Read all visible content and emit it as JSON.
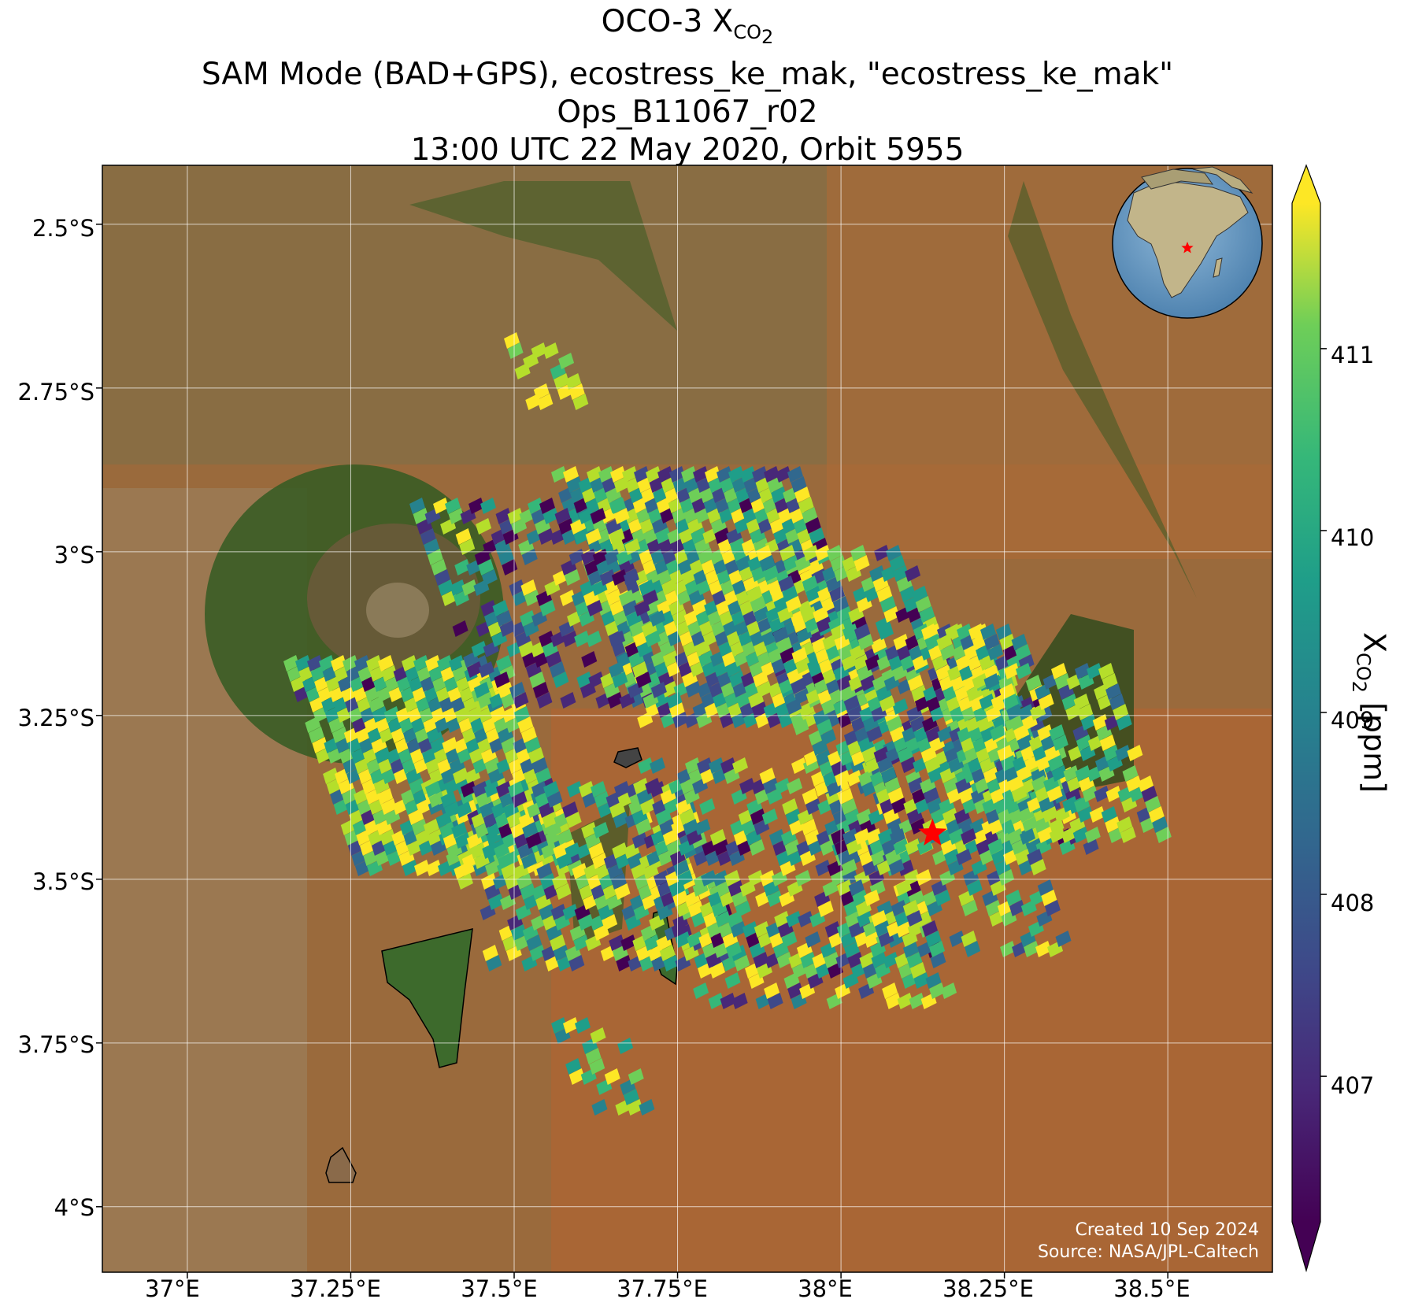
{
  "title": {
    "line1_main": "OCO-3 X",
    "line1_sub": "CO",
    "line1_subsub": "2",
    "line2": "SAM Mode (BAD+GPS), ecostress_ke_mak, \"ecostress_ke_mak\"",
    "line3": "Ops_B11067_r02",
    "line4": "13:00 UTC 22 May 2020, Orbit 5955"
  },
  "axes": {
    "x_ticks": [
      "37°E",
      "37.25°E",
      "37.5°E",
      "37.75°E",
      "38°E",
      "38.25°E",
      "38.5°E"
    ],
    "y_ticks": [
      "2.5°S",
      "2.75°S",
      "3°S",
      "3.25°S",
      "3.5°S",
      "3.75°S",
      "4°S"
    ],
    "lon_range": [
      36.87,
      38.66
    ],
    "lat_range": [
      -2.41,
      -4.1
    ]
  },
  "colorbar": {
    "label_main": "X",
    "label_sub": "CO",
    "label_subsub": "2",
    "label_unit": " [ppm]",
    "ticks": [
      "407",
      "408",
      "409",
      "410",
      "411"
    ],
    "range": [
      406.2,
      411.8
    ],
    "colormap": "viridis",
    "extend": "both"
  },
  "credits": {
    "created": "Created 10 Sep 2024",
    "source": "Source: NASA/JPL-Caltech"
  },
  "target": {
    "lon": 38.14,
    "lat": -3.43,
    "marker": "red-star"
  },
  "inset": {
    "type": "globe",
    "marker": "red-star",
    "region": "East Africa"
  },
  "colors": {
    "target_star": "#ff0000",
    "gridline": "#ffffff"
  }
}
